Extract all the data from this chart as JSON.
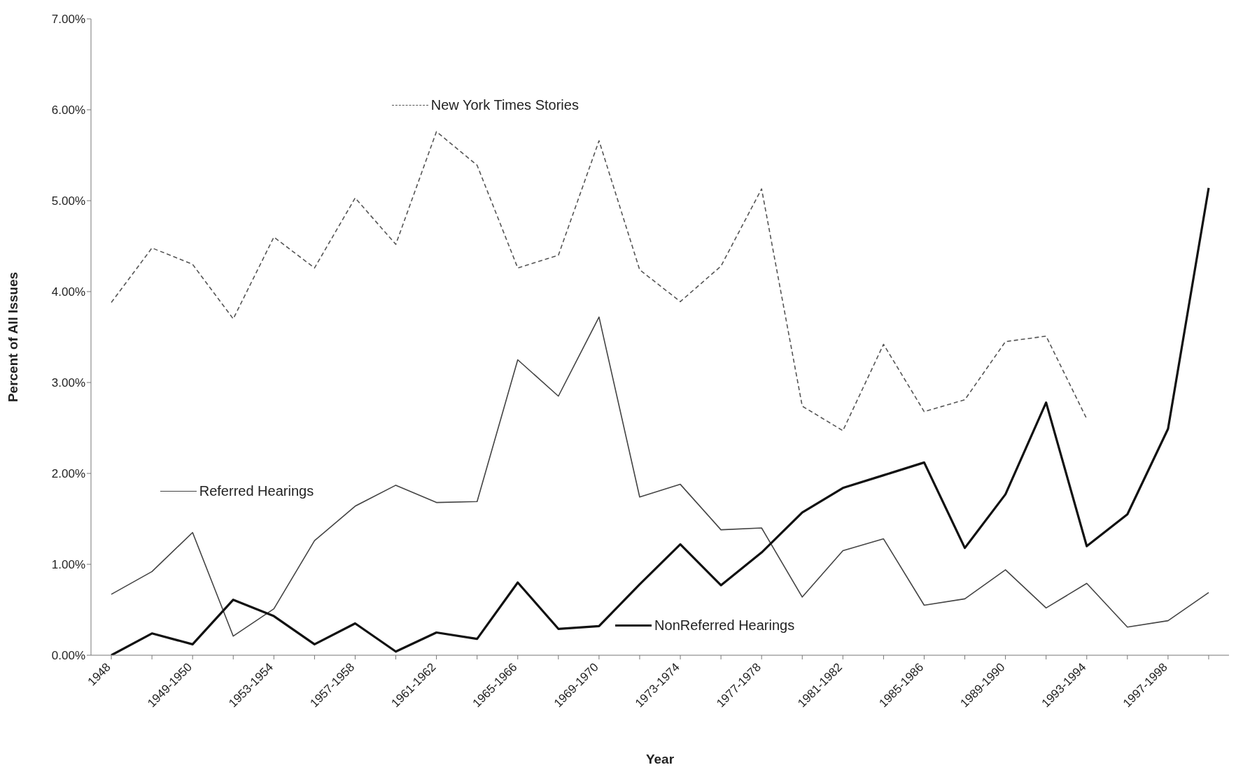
{
  "chart_data": {
    "type": "line",
    "xlabel": "Year",
    "ylabel": "Percent of All Issues",
    "categories": [
      "1948",
      null,
      "1949-1950",
      null,
      "1953-1954",
      null,
      "1957-1958",
      null,
      "1961-1962",
      null,
      "1965-1966",
      null,
      "1969-1970",
      null,
      "1973-1974",
      null,
      "1977-1978",
      null,
      "1981-1982",
      null,
      "1985-1986",
      null,
      "1989-1990",
      null,
      "1993-1994",
      null,
      "1997-1998",
      null
    ],
    "ylim": [
      0,
      7
    ],
    "legend": "bottom left",
    "yticks": [
      {
        "value": 0,
        "label": "0.00%"
      },
      {
        "value": 1,
        "label": "1.00%"
      },
      {
        "value": 2,
        "label": "2.00%"
      },
      {
        "value": 3,
        "label": "3.00%"
      },
      {
        "value": 4,
        "label": "4.00%"
      },
      {
        "value": 5,
        "label": "5.00%"
      },
      {
        "value": 6,
        "label": "6.00%"
      },
      {
        "value": 7,
        "label": "7.00%"
      }
    ],
    "series": [
      {
        "name": "New York Times Stories",
        "color": "#555555",
        "line_style": "dashed",
        "values": [
          3.88,
          4.48,
          4.3,
          3.7,
          4.6,
          4.26,
          5.03,
          4.52,
          5.76,
          5.39,
          4.26,
          4.4,
          5.66,
          4.24,
          3.89,
          4.28,
          5.13,
          2.74,
          2.47,
          3.42,
          2.68,
          2.81,
          3.45,
          3.51,
          2.6,
          null,
          null,
          null
        ]
      },
      {
        "name": "Referred Hearings",
        "color": "#444444",
        "line_style": "solid",
        "values": [
          0.67,
          0.92,
          1.35,
          0.21,
          0.51,
          1.26,
          1.64,
          1.87,
          1.68,
          1.69,
          3.25,
          2.85,
          3.72,
          1.74,
          1.88,
          1.38,
          1.4,
          0.64,
          1.15,
          1.28,
          0.55,
          0.62,
          0.94,
          0.52,
          0.79,
          0.31,
          0.38,
          0.69
        ]
      },
      {
        "name": "NonReferred Hearings",
        "color": "#111111",
        "line_style": "solid",
        "values": [
          0,
          0.24,
          0.12,
          0.61,
          0.43,
          0.12,
          0.35,
          0.04,
          0.25,
          0.18,
          0.8,
          0.29,
          0.32,
          0.78,
          1.22,
          0.77,
          1.13,
          1.57,
          1.84,
          1.98,
          2.12,
          1.18,
          1.77,
          2.78,
          1.2,
          1.55,
          2.49,
          5.14
        ]
      }
    ]
  }
}
